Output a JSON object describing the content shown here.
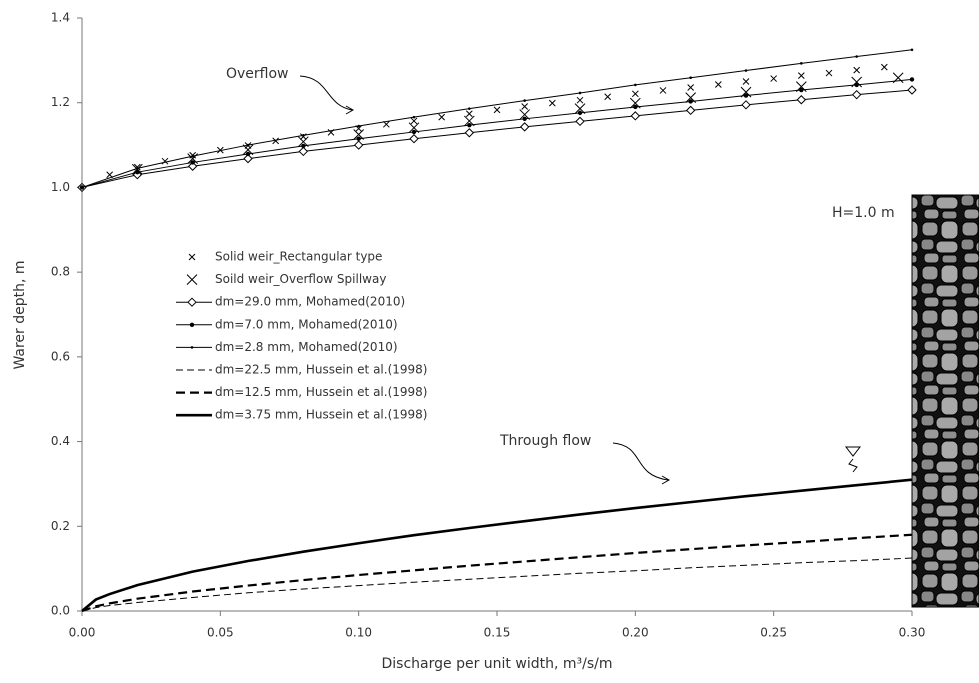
{
  "chart_data": {
    "type": "line",
    "x_label": "Discharge per unit width, m³/s/m",
    "y_label": "Warer depth, m",
    "annotations": [
      "Overflow",
      "Through flow",
      "H=1.0 m"
    ],
    "xlim": [
      0,
      0.3
    ],
    "ylim": [
      0,
      1.4
    ],
    "xticks": [
      {
        "value": 0,
        "label": "0.00"
      },
      {
        "value": 0.05,
        "label": "0.05"
      },
      {
        "value": 0.1,
        "label": "0.10"
      },
      {
        "value": 0.15,
        "label": "0.15"
      },
      {
        "value": 0.2,
        "label": "0.20"
      },
      {
        "value": 0.25,
        "label": "0.25"
      },
      {
        "value": 0.3,
        "label": "0.30"
      }
    ],
    "yticks": [
      {
        "value": 0,
        "label": "0.0"
      },
      {
        "value": 0.2,
        "label": "0.2"
      },
      {
        "value": 0.4,
        "label": "0.4"
      },
      {
        "value": 0.6,
        "label": "0.6"
      },
      {
        "value": 0.8,
        "label": "0.8"
      },
      {
        "value": 1,
        "label": "1.0"
      },
      {
        "value": 1.2,
        "label": "1.2"
      },
      {
        "value": 1.4,
        "label": "1.4"
      }
    ],
    "series": [
      {
        "name": "Solid weir_Rectangular type",
        "color": "#000000",
        "marker": "x-small",
        "dash": "none",
        "line_width": 0,
        "x": [
          0.01,
          0.02,
          0.03,
          0.04,
          0.05,
          0.06,
          0.07,
          0.08,
          0.09,
          0.1,
          0.11,
          0.12,
          0.13,
          0.14,
          0.15,
          0.16,
          0.17,
          0.18,
          0.19,
          0.2,
          0.21,
          0.22,
          0.23,
          0.24,
          0.25,
          0.26,
          0.27,
          0.28,
          0.29
        ],
        "values": [
          1.03,
          1.048,
          1.062,
          1.076,
          1.088,
          1.099,
          1.11,
          1.12,
          1.13,
          1.139,
          1.149,
          1.157,
          1.166,
          1.174,
          1.183,
          1.191,
          1.199,
          1.206,
          1.214,
          1.221,
          1.229,
          1.236,
          1.243,
          1.25,
          1.257,
          1.264,
          1.27,
          1.277,
          1.284
        ]
      },
      {
        "name": "Soild weir_Overflow Spillway",
        "color": "#000000",
        "marker": "x-large",
        "dash": "none",
        "line_width": 0,
        "x": [
          0.02,
          0.04,
          0.06,
          0.08,
          0.1,
          0.12,
          0.14,
          0.16,
          0.18,
          0.2,
          0.22,
          0.24,
          0.26,
          0.28,
          0.295
        ],
        "values": [
          1.043,
          1.068,
          1.089,
          1.108,
          1.125,
          1.141,
          1.157,
          1.172,
          1.186,
          1.199,
          1.212,
          1.225,
          1.238,
          1.249,
          1.259
        ]
      },
      {
        "name": "dm=29.0 mm, Mohamed(2010)",
        "color": "#000000",
        "marker": "diamond",
        "dash": "solid",
        "line_width": 1,
        "x": [
          0,
          0.02,
          0.04,
          0.06,
          0.08,
          0.1,
          0.12,
          0.14,
          0.16,
          0.18,
          0.2,
          0.22,
          0.24,
          0.26,
          0.28,
          0.3
        ],
        "values": [
          1.0,
          1.03,
          1.05,
          1.068,
          1.085,
          1.1,
          1.115,
          1.129,
          1.143,
          1.156,
          1.169,
          1.182,
          1.195,
          1.207,
          1.219,
          1.23
        ]
      },
      {
        "name": "dm=7.0 mm, Mohamed(2010)",
        "color": "#000000",
        "marker": "dot",
        "dash": "solid",
        "line_width": 1,
        "x": [
          0,
          0.02,
          0.04,
          0.06,
          0.08,
          0.1,
          0.12,
          0.14,
          0.16,
          0.18,
          0.2,
          0.22,
          0.24,
          0.26,
          0.28,
          0.3
        ],
        "values": [
          1.0,
          1.036,
          1.059,
          1.079,
          1.098,
          1.115,
          1.131,
          1.147,
          1.162,
          1.176,
          1.19,
          1.203,
          1.217,
          1.23,
          1.242,
          1.255
        ]
      },
      {
        "name": "dm=2.8 mm, Mohamed(2010)",
        "color": "#000000",
        "marker": "dot-small",
        "dash": "solid",
        "line_width": 1,
        "x": [
          0,
          0.02,
          0.04,
          0.06,
          0.08,
          0.1,
          0.12,
          0.14,
          0.16,
          0.18,
          0.2,
          0.22,
          0.24,
          0.26,
          0.28,
          0.3
        ],
        "values": [
          1.0,
          1.045,
          1.074,
          1.1,
          1.123,
          1.145,
          1.166,
          1.186,
          1.205,
          1.223,
          1.242,
          1.259,
          1.276,
          1.293,
          1.309,
          1.325
        ]
      },
      {
        "name": "dm=22.5 mm, Hussein et al.(1998)",
        "color": "#000000",
        "marker": "none",
        "dash": "dashed",
        "line_width": 1,
        "x": [
          0,
          0.005,
          0.01,
          0.02,
          0.04,
          0.06,
          0.08,
          0.1,
          0.12,
          0.14,
          0.16,
          0.18,
          0.2,
          0.22,
          0.24,
          0.26,
          0.28,
          0.3
        ],
        "values": [
          0,
          0.008,
          0.013,
          0.02,
          0.032,
          0.043,
          0.052,
          0.06,
          0.068,
          0.075,
          0.082,
          0.089,
          0.095,
          0.102,
          0.108,
          0.114,
          0.119,
          0.125
        ]
      },
      {
        "name": "dm=12.5 mm, Hussein et al.(1998)",
        "color": "#000000",
        "marker": "none",
        "dash": "dashed",
        "line_width": 2.2,
        "x": [
          0,
          0.005,
          0.01,
          0.02,
          0.04,
          0.06,
          0.08,
          0.1,
          0.12,
          0.14,
          0.16,
          0.18,
          0.2,
          0.22,
          0.24,
          0.26,
          0.28,
          0.3
        ],
        "values": [
          0,
          0.011,
          0.018,
          0.029,
          0.046,
          0.06,
          0.073,
          0.085,
          0.096,
          0.107,
          0.117,
          0.127,
          0.137,
          0.146,
          0.155,
          0.163,
          0.172,
          0.18
        ]
      },
      {
        "name": "dm=3.75 mm, Hussein et al.(1998)",
        "color": "#000000",
        "marker": "none",
        "dash": "solid",
        "line_width": 2.6,
        "x": [
          0,
          0.005,
          0.01,
          0.02,
          0.04,
          0.06,
          0.08,
          0.1,
          0.12,
          0.14,
          0.16,
          0.18,
          0.2,
          0.22,
          0.24,
          0.26,
          0.28,
          0.3
        ],
        "values": [
          0,
          0.027,
          0.04,
          0.061,
          0.093,
          0.118,
          0.14,
          0.16,
          0.179,
          0.196,
          0.212,
          0.228,
          0.243,
          0.257,
          0.271,
          0.284,
          0.297,
          0.31
        ]
      }
    ]
  }
}
